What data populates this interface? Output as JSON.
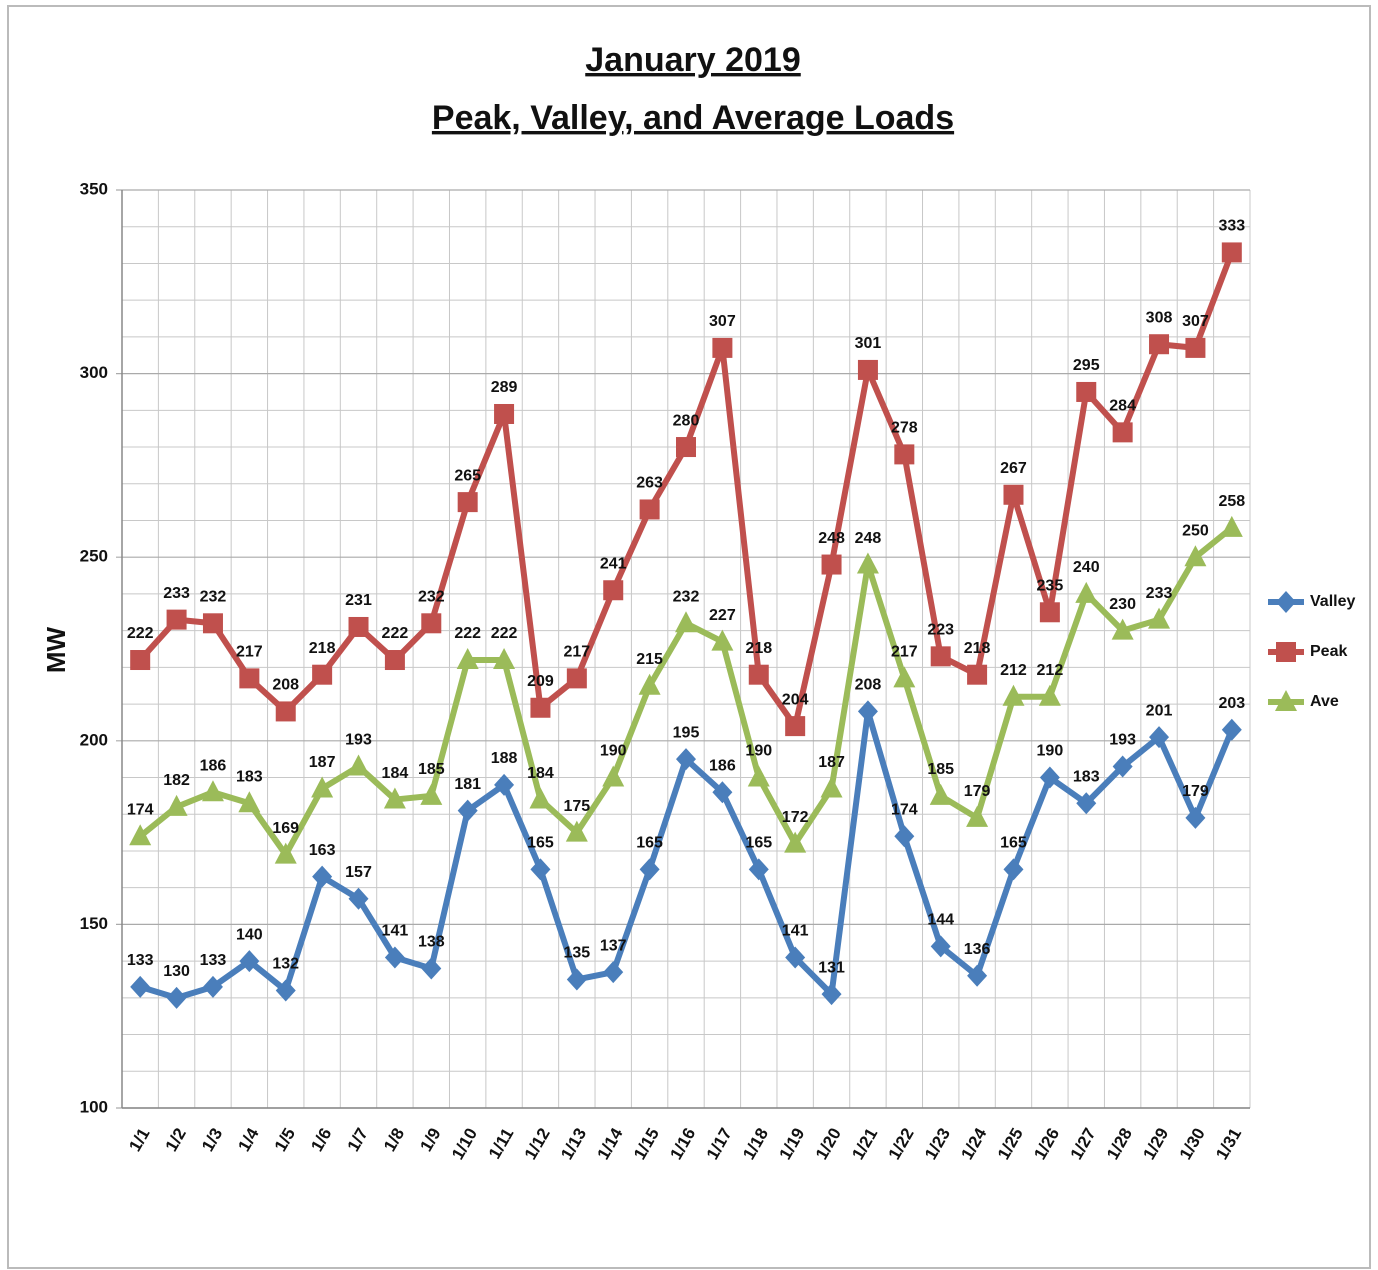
{
  "chart_data": {
    "type": "line",
    "title": "January 2019",
    "subtitle": "Peak, Valley, and Average Loads",
    "y_label": "MW",
    "categories": [
      "1/1",
      "1/2",
      "1/3",
      "1/4",
      "1/5",
      "1/6",
      "1/7",
      "1/8",
      "1/9",
      "1/10",
      "1/11",
      "1/12",
      "1/13",
      "1/14",
      "1/15",
      "1/16",
      "1/17",
      "1/18",
      "1/19",
      "1/20",
      "1/21",
      "1/22",
      "1/23",
      "1/24",
      "1/25",
      "1/26",
      "1/27",
      "1/28",
      "1/29",
      "1/30",
      "1/31"
    ],
    "series": [
      {
        "name": "Valley",
        "color": "#4a7ebb",
        "marker": "diamond",
        "values": [
          133,
          130,
          133,
          140,
          132,
          163,
          157,
          141,
          138,
          181,
          188,
          165,
          135,
          137,
          165,
          195,
          186,
          165,
          141,
          131,
          208,
          174,
          144,
          136,
          165,
          190,
          183,
          193,
          201,
          179,
          203
        ]
      },
      {
        "name": "Peak",
        "color": "#c0504d",
        "marker": "square",
        "values": [
          222,
          233,
          232,
          217,
          208,
          218,
          231,
          222,
          232,
          265,
          289,
          209,
          217,
          241,
          263,
          280,
          307,
          218,
          204,
          248,
          301,
          278,
          223,
          218,
          267,
          235,
          295,
          284,
          308,
          307,
          333
        ]
      },
      {
        "name": "Ave",
        "color": "#9bbb59",
        "marker": "triangle",
        "values": [
          174,
          182,
          186,
          183,
          169,
          187,
          193,
          184,
          185,
          222,
          222,
          184,
          175,
          190,
          215,
          232,
          227,
          190,
          172,
          187,
          248,
          217,
          185,
          179,
          212,
          212,
          240,
          230,
          233,
          250,
          258
        ]
      }
    ],
    "ylim": [
      100,
      350
    ],
    "yticks": [
      100,
      150,
      200,
      250,
      300,
      350
    ],
    "grid": true,
    "legend": "right"
  }
}
